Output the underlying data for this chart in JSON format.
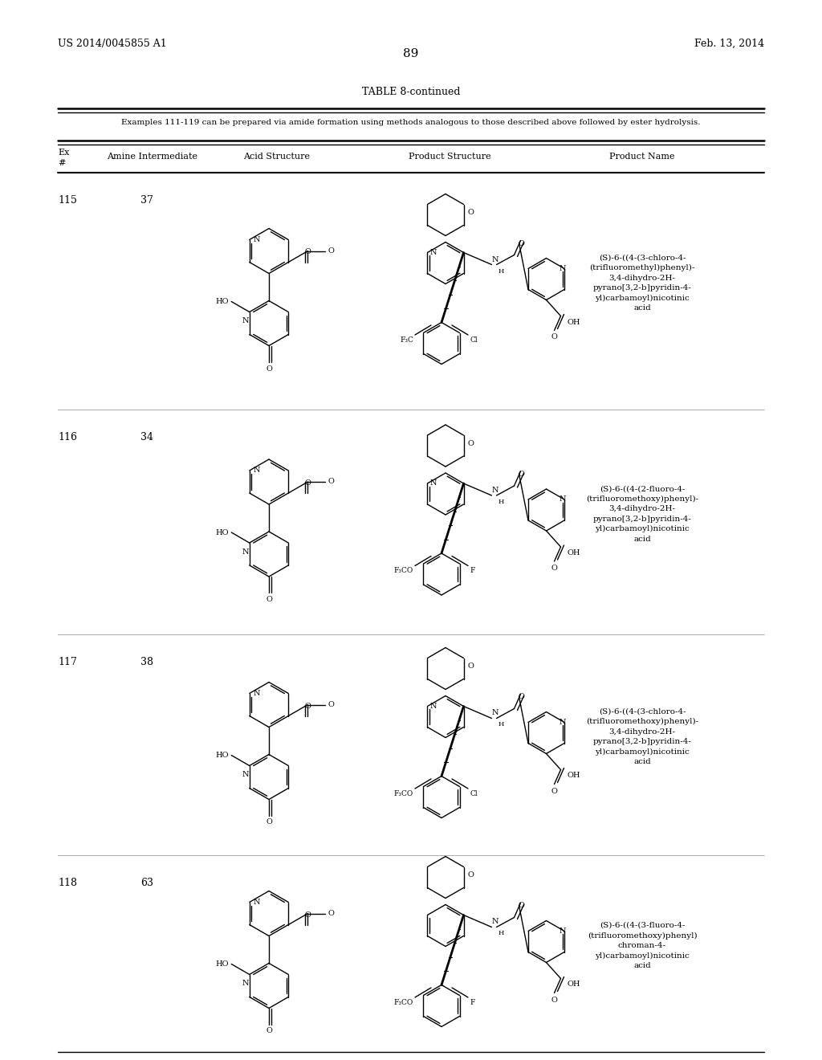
{
  "page_number": "89",
  "patent_number": "US 2014/0045855 A1",
  "patent_date": "Feb. 13, 2014",
  "table_title": "TABLE 8-continued",
  "table_note": "Examples 111-119 can be prepared via amide formation using methods analogous to those described above followed by ester hydrolysis.",
  "bg_color": "#ffffff",
  "text_color": "#000000",
  "rows": [
    {
      "ex": "115",
      "amine": "37",
      "halogen1": "F₃C",
      "halogen2": "Cl",
      "has_OCF3": false,
      "is_chroman": false,
      "name": "(S)-6-((4-(3-chloro-4-\n(trifluoromethyl)phenyl)-\n3,4-dihydro-2H-\npyrano[3,2-b]pyridin-4-\nyl)carbamoyl)nicotinic\nacid"
    },
    {
      "ex": "116",
      "amine": "34",
      "halogen1": "F₃CO",
      "halogen2": "F",
      "has_OCF3": true,
      "is_chroman": false,
      "name": "(S)-6-((4-(2-fluoro-4-\n(trifluoromethoxy)phenyl)-\n3,4-dihydro-2H-\npyrano[3,2-b]pyridin-4-\nyl)carbamoyl)nicotinic\nacid"
    },
    {
      "ex": "117",
      "amine": "38",
      "halogen1": "F₃CO",
      "halogen2": "Cl",
      "has_OCF3": true,
      "is_chroman": false,
      "name": "(S)-6-((4-(3-chloro-4-\n(trifluoromethoxy)phenyl)-\n3,4-dihydro-2H-\npyrano[3,2-b]pyridin-4-\nyl)carbamoyl)nicotinic\nacid"
    },
    {
      "ex": "118",
      "amine": "63",
      "halogen1": "F₃CO",
      "halogen2": "F",
      "has_OCF3": true,
      "is_chroman": true,
      "name": "(S)-6-((4-(3-fluoro-4-\n(trifluoromethoxy)phenyl)\nchroman-4-\nyl)carbamoyl)nicotinic\nacid"
    }
  ]
}
